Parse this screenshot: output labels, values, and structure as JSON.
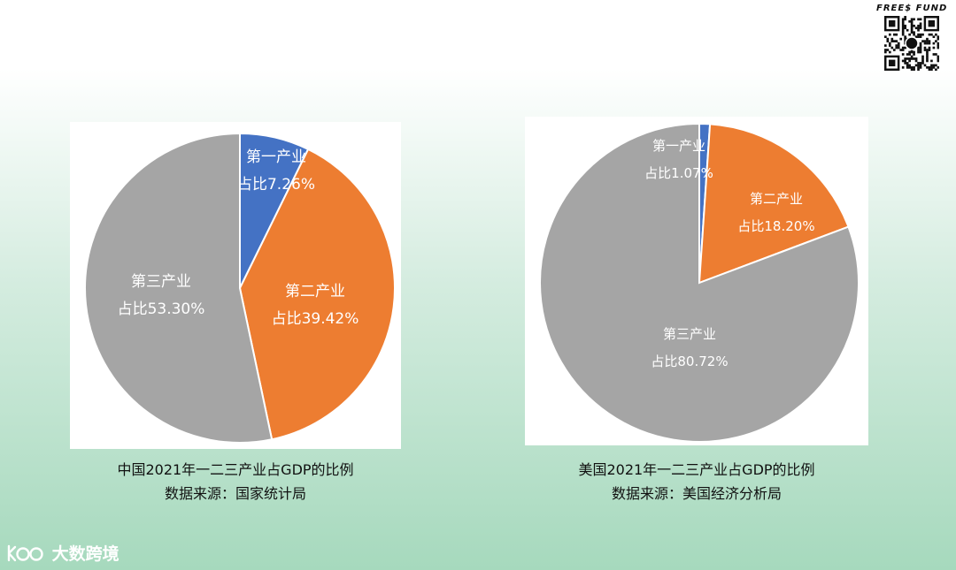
{
  "brand": {
    "name": "FREE$ FUND"
  },
  "watermark": {
    "text": "大数跨境"
  },
  "colors": {
    "primary": "#4472C4",
    "secondary": "#ED7D31",
    "tertiary": "#A5A5A5"
  },
  "chart_data": [
    {
      "type": "pie",
      "title": "中国2021年一二三产业占GDP的比例",
      "subtitle": "数据来源：国家统计局",
      "slices": [
        {
          "name": "第一产业",
          "value": 7.26,
          "value_label": "占比7.26%"
        },
        {
          "name": "第二产业",
          "value": 39.42,
          "value_label": "占比39.42%"
        },
        {
          "name": "第三产业",
          "value": 53.3,
          "value_label": "占比53.30%"
        }
      ]
    },
    {
      "type": "pie",
      "title": "美国2021年一二三产业占GDP的比例",
      "subtitle": "数据来源：美国经济分析局",
      "slices": [
        {
          "name": "第一产业",
          "value": 1.07,
          "value_label": "占比1.07%"
        },
        {
          "name": "第二产业",
          "value": 18.2,
          "value_label": "占比18.20%"
        },
        {
          "name": "第三产业",
          "value": 80.72,
          "value_label": "占比80.72%"
        }
      ]
    }
  ]
}
